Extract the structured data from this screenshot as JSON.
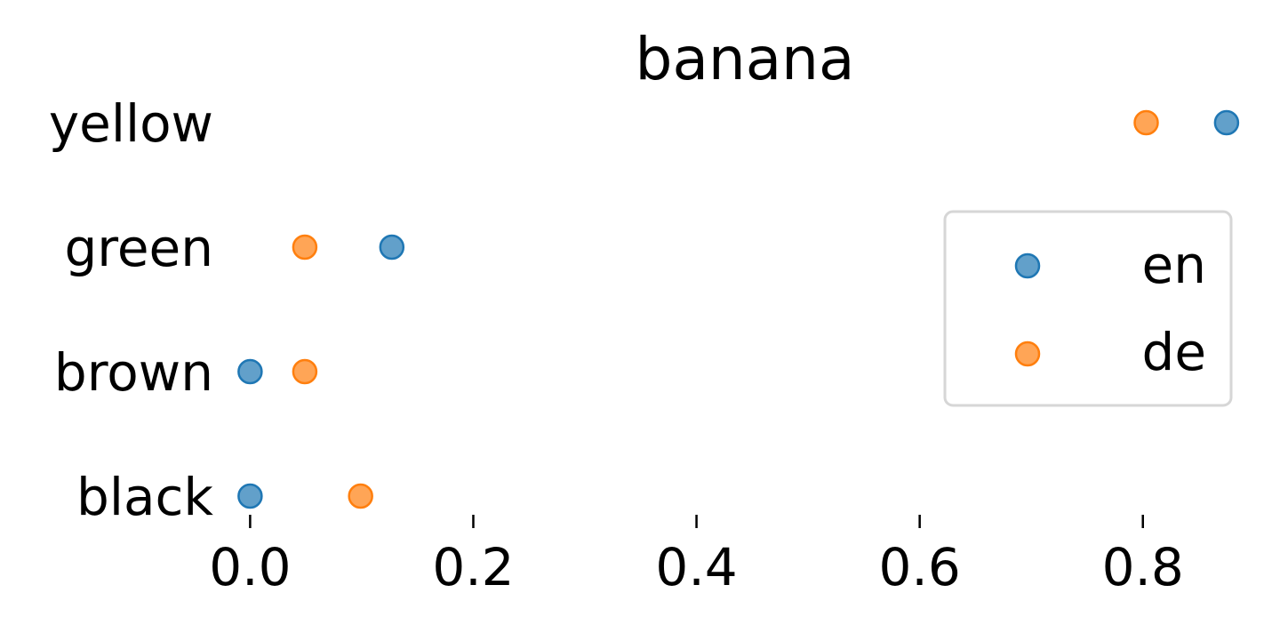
{
  "chart_data": {
    "type": "scatter",
    "title": "banana",
    "xlabel": "",
    "ylabel": "",
    "categories": [
      "yellow",
      "green",
      "brown",
      "black"
    ],
    "x_ticks": [
      "0.0",
      "0.2",
      "0.4",
      "0.6",
      "0.8"
    ],
    "xlim": [
      -0.025,
      0.895
    ],
    "grid": false,
    "legend_position": "right",
    "series": [
      {
        "name": "en",
        "color": "#1f77b4",
        "values": [
          0.875,
          0.127,
          0.0,
          0.0
        ]
      },
      {
        "name": "de",
        "color": "#ff7f0e",
        "values": [
          0.803,
          0.049,
          0.049,
          0.099
        ]
      }
    ]
  }
}
